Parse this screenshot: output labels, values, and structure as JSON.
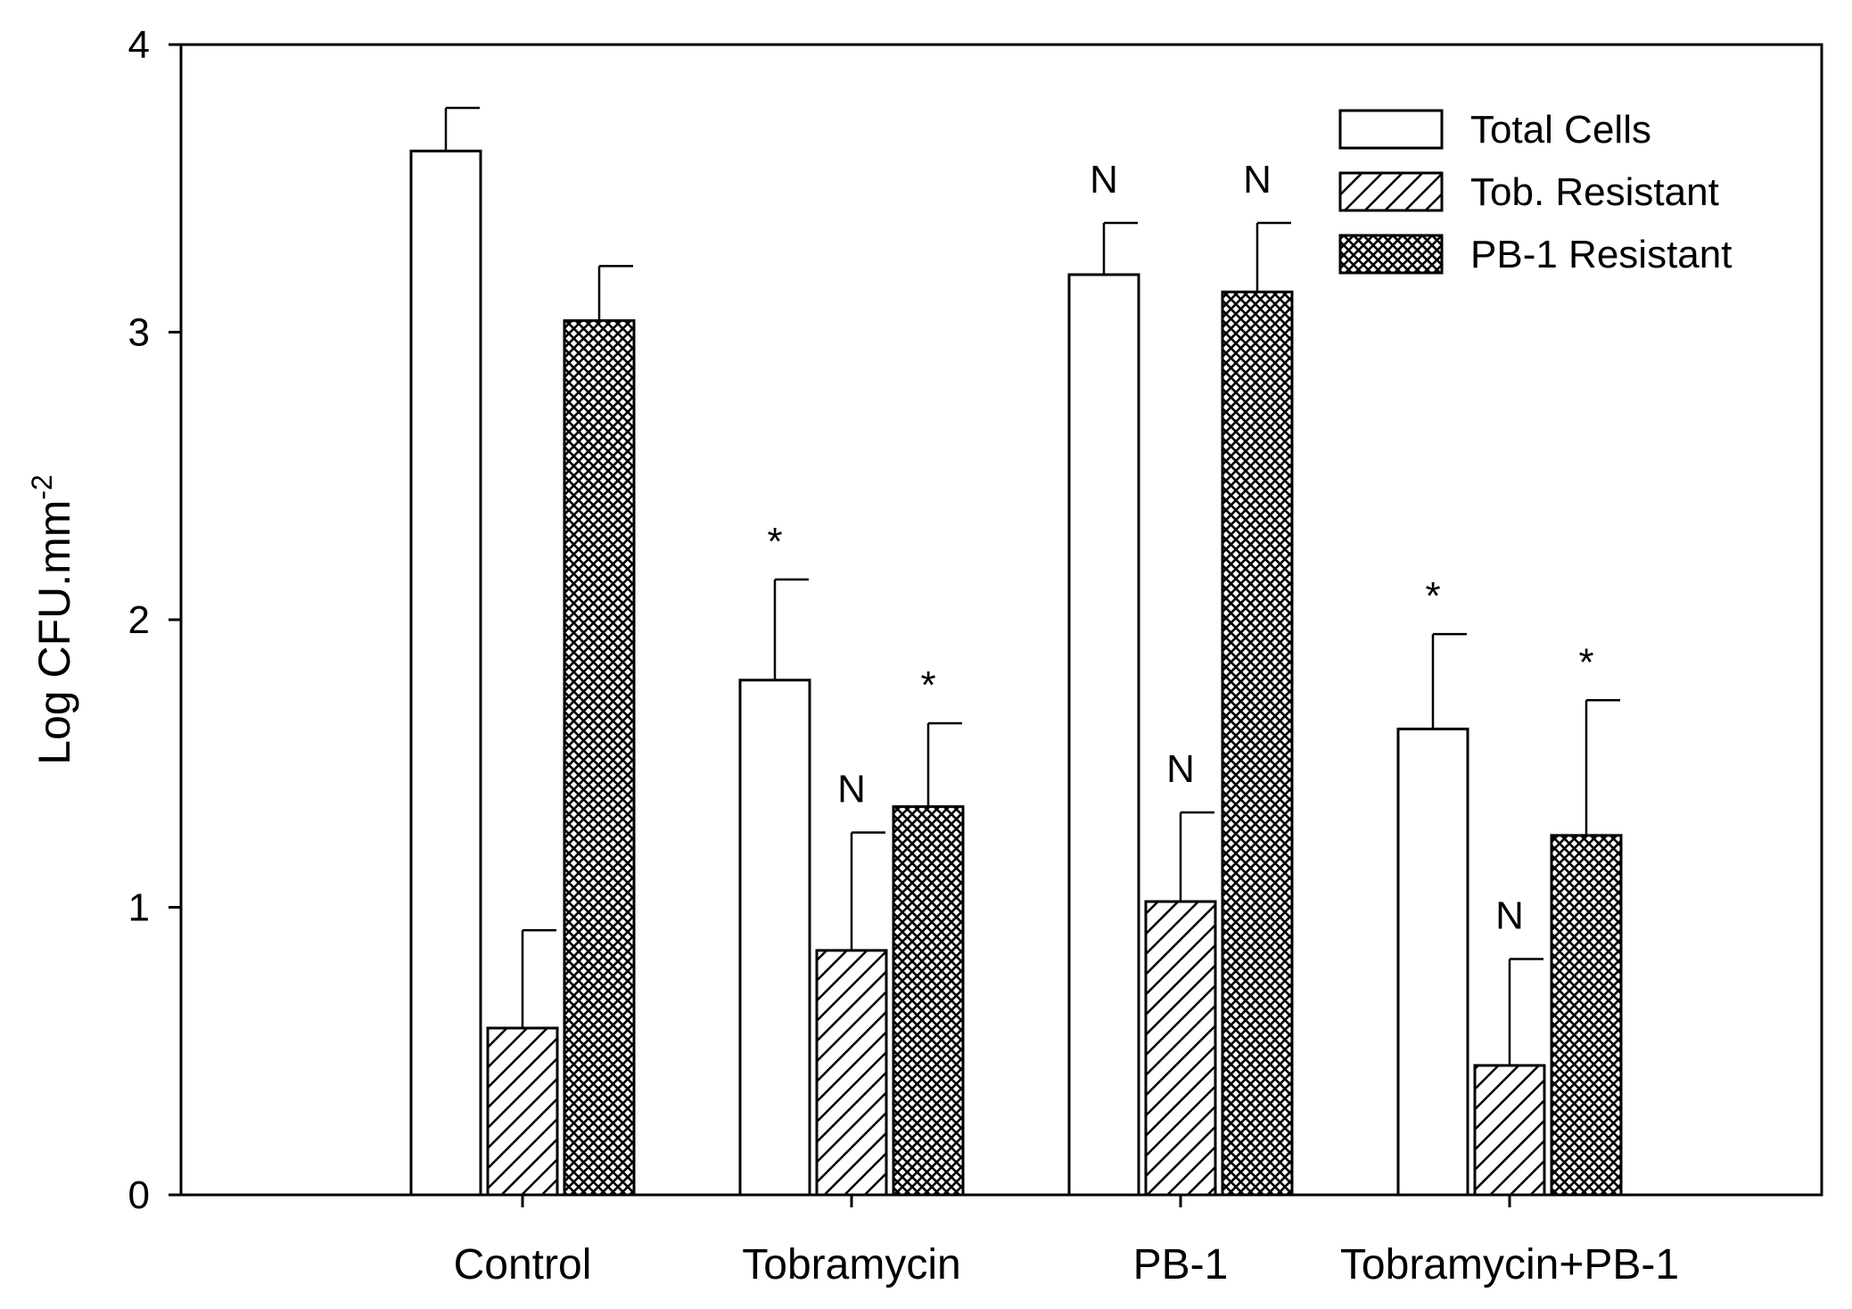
{
  "chart_data": {
    "type": "bar",
    "title": "",
    "xlabel": "",
    "ylabel": "Log CFU.mm",
    "ylabel_superscript": "-2",
    "ylim": [
      0,
      4
    ],
    "yticks": [
      0,
      1,
      2,
      3,
      4
    ],
    "ytick_labels": [
      "0",
      "1",
      "2",
      "3",
      "4"
    ],
    "grid": false,
    "legend_position": "top-right",
    "categories": [
      "Control",
      "Tobramycin",
      "PB-1",
      "Tobramycin+PB-1"
    ],
    "series": [
      {
        "name": "Total Cells",
        "pattern": "empty",
        "values": [
          3.63,
          1.79,
          3.2,
          1.62
        ],
        "errors": [
          0.15,
          0.35,
          0.18,
          0.33
        ],
        "annotations": [
          "",
          "*",
          "N",
          "*"
        ]
      },
      {
        "name": "Tob. Resistant",
        "pattern": "diagonal",
        "values": [
          0.58,
          0.85,
          1.02,
          0.45
        ],
        "errors": [
          0.34,
          0.41,
          0.31,
          0.37
        ],
        "annotations": [
          "",
          "N",
          "N",
          "N"
        ]
      },
      {
        "name": "PB-1 Resistant",
        "pattern": "crosshatch",
        "values": [
          3.04,
          1.35,
          3.14,
          1.25
        ],
        "errors": [
          0.19,
          0.29,
          0.24,
          0.47
        ],
        "annotations": [
          "",
          "*",
          "N",
          "*"
        ]
      }
    ]
  }
}
